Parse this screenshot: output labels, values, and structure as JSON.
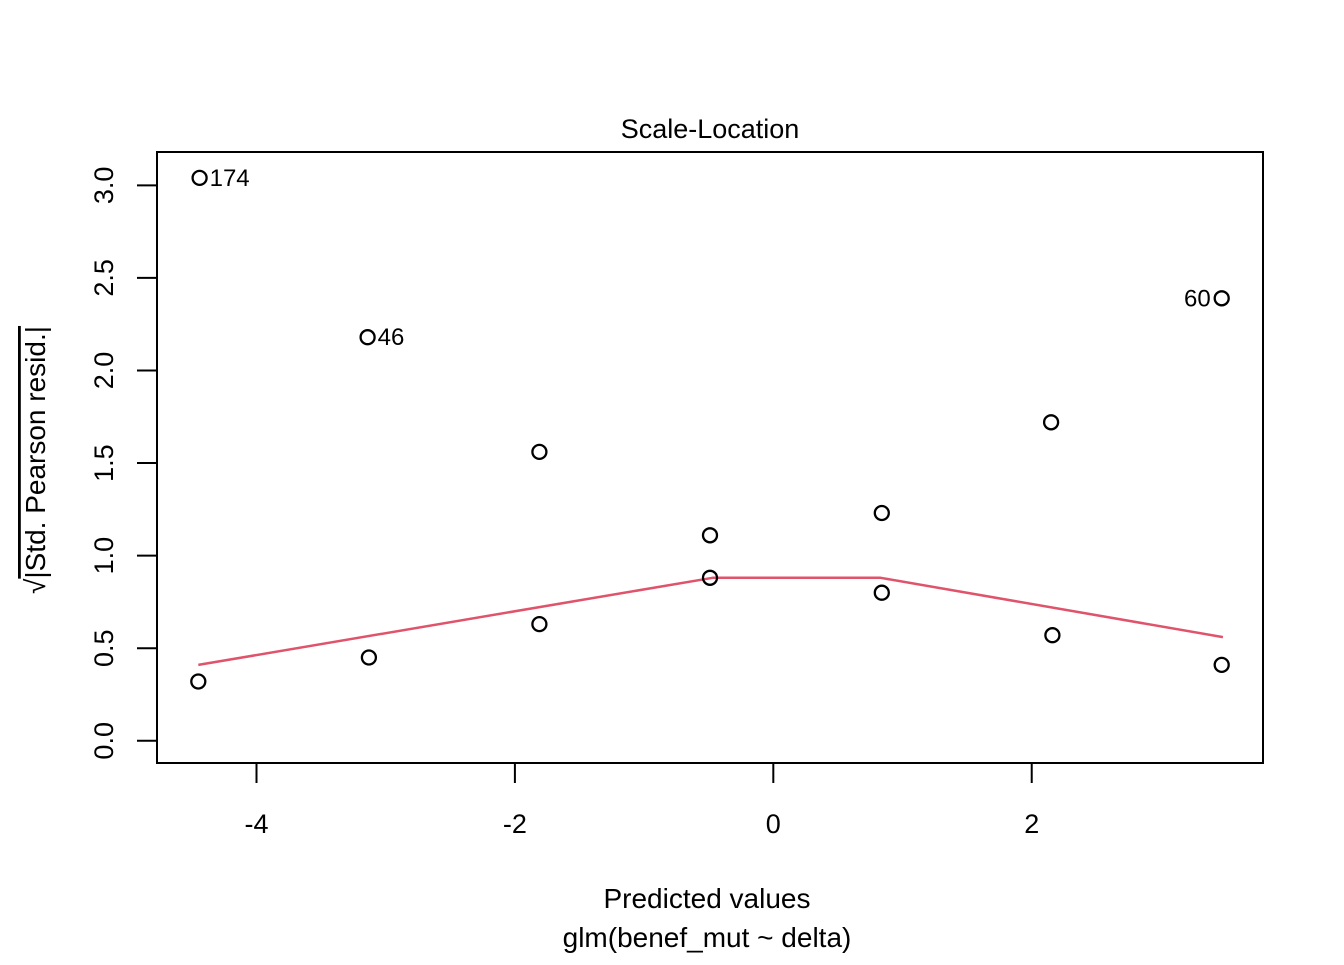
{
  "figure": {
    "title": "Scale-Location",
    "x_axis_label_line1": "Predicted values",
    "x_axis_label_line2": "glm(benef_mut ~ delta)",
    "y_axis_label_radical": "√",
    "y_axis_label_text": "|Std. Pearson resid.|"
  },
  "chart_data": {
    "type": "scatter",
    "title": "Scale-Location",
    "xlabel": "Predicted values",
    "model_caption": "glm(benef_mut ~ delta)",
    "ylabel": "sqrt(|Std. Pearson resid.|)",
    "xlim": [
      -4.77,
      3.79
    ],
    "ylim": [
      -0.12,
      3.18
    ],
    "grid": false,
    "legend": null,
    "x_ticks": [
      {
        "value": -4,
        "label": "-4"
      },
      {
        "value": -2,
        "label": "-2"
      },
      {
        "value": 0,
        "label": "0"
      },
      {
        "value": 2,
        "label": "2"
      }
    ],
    "y_ticks": [
      {
        "value": 0.0,
        "label": "0.0"
      },
      {
        "value": 0.5,
        "label": "0.5"
      },
      {
        "value": 1.0,
        "label": "1.0"
      },
      {
        "value": 1.5,
        "label": "1.5"
      },
      {
        "value": 2.0,
        "label": "2.0"
      },
      {
        "value": 2.5,
        "label": "2.5"
      },
      {
        "value": 3.0,
        "label": "3.0"
      }
    ],
    "points": [
      {
        "x": -4.44,
        "y": 3.04,
        "label": "174",
        "label_side": "right"
      },
      {
        "x": -4.45,
        "y": 0.32
      },
      {
        "x": -3.14,
        "y": 2.18,
        "label": "46",
        "label_side": "right"
      },
      {
        "x": -3.13,
        "y": 0.45
      },
      {
        "x": -1.81,
        "y": 1.56
      },
      {
        "x": -1.81,
        "y": 0.63
      },
      {
        "x": -0.49,
        "y": 1.11
      },
      {
        "x": -0.49,
        "y": 0.88
      },
      {
        "x": 0.84,
        "y": 1.23
      },
      {
        "x": 0.84,
        "y": 0.8
      },
      {
        "x": 2.15,
        "y": 1.72
      },
      {
        "x": 2.16,
        "y": 0.57
      },
      {
        "x": 3.47,
        "y": 2.39,
        "label": "60",
        "label_side": "left"
      },
      {
        "x": 3.47,
        "y": 0.41
      }
    ],
    "smooth_line": {
      "points": [
        {
          "x": -4.45,
          "y": 0.41
        },
        {
          "x": -0.47,
          "y": 0.88
        },
        {
          "x": 0.83,
          "y": 0.88
        },
        {
          "x": 3.48,
          "y": 0.56
        }
      ]
    },
    "colors": {
      "points": "#000000",
      "smooth_line": "#DF536B",
      "axis": "#000000",
      "background": "#ffffff"
    }
  }
}
